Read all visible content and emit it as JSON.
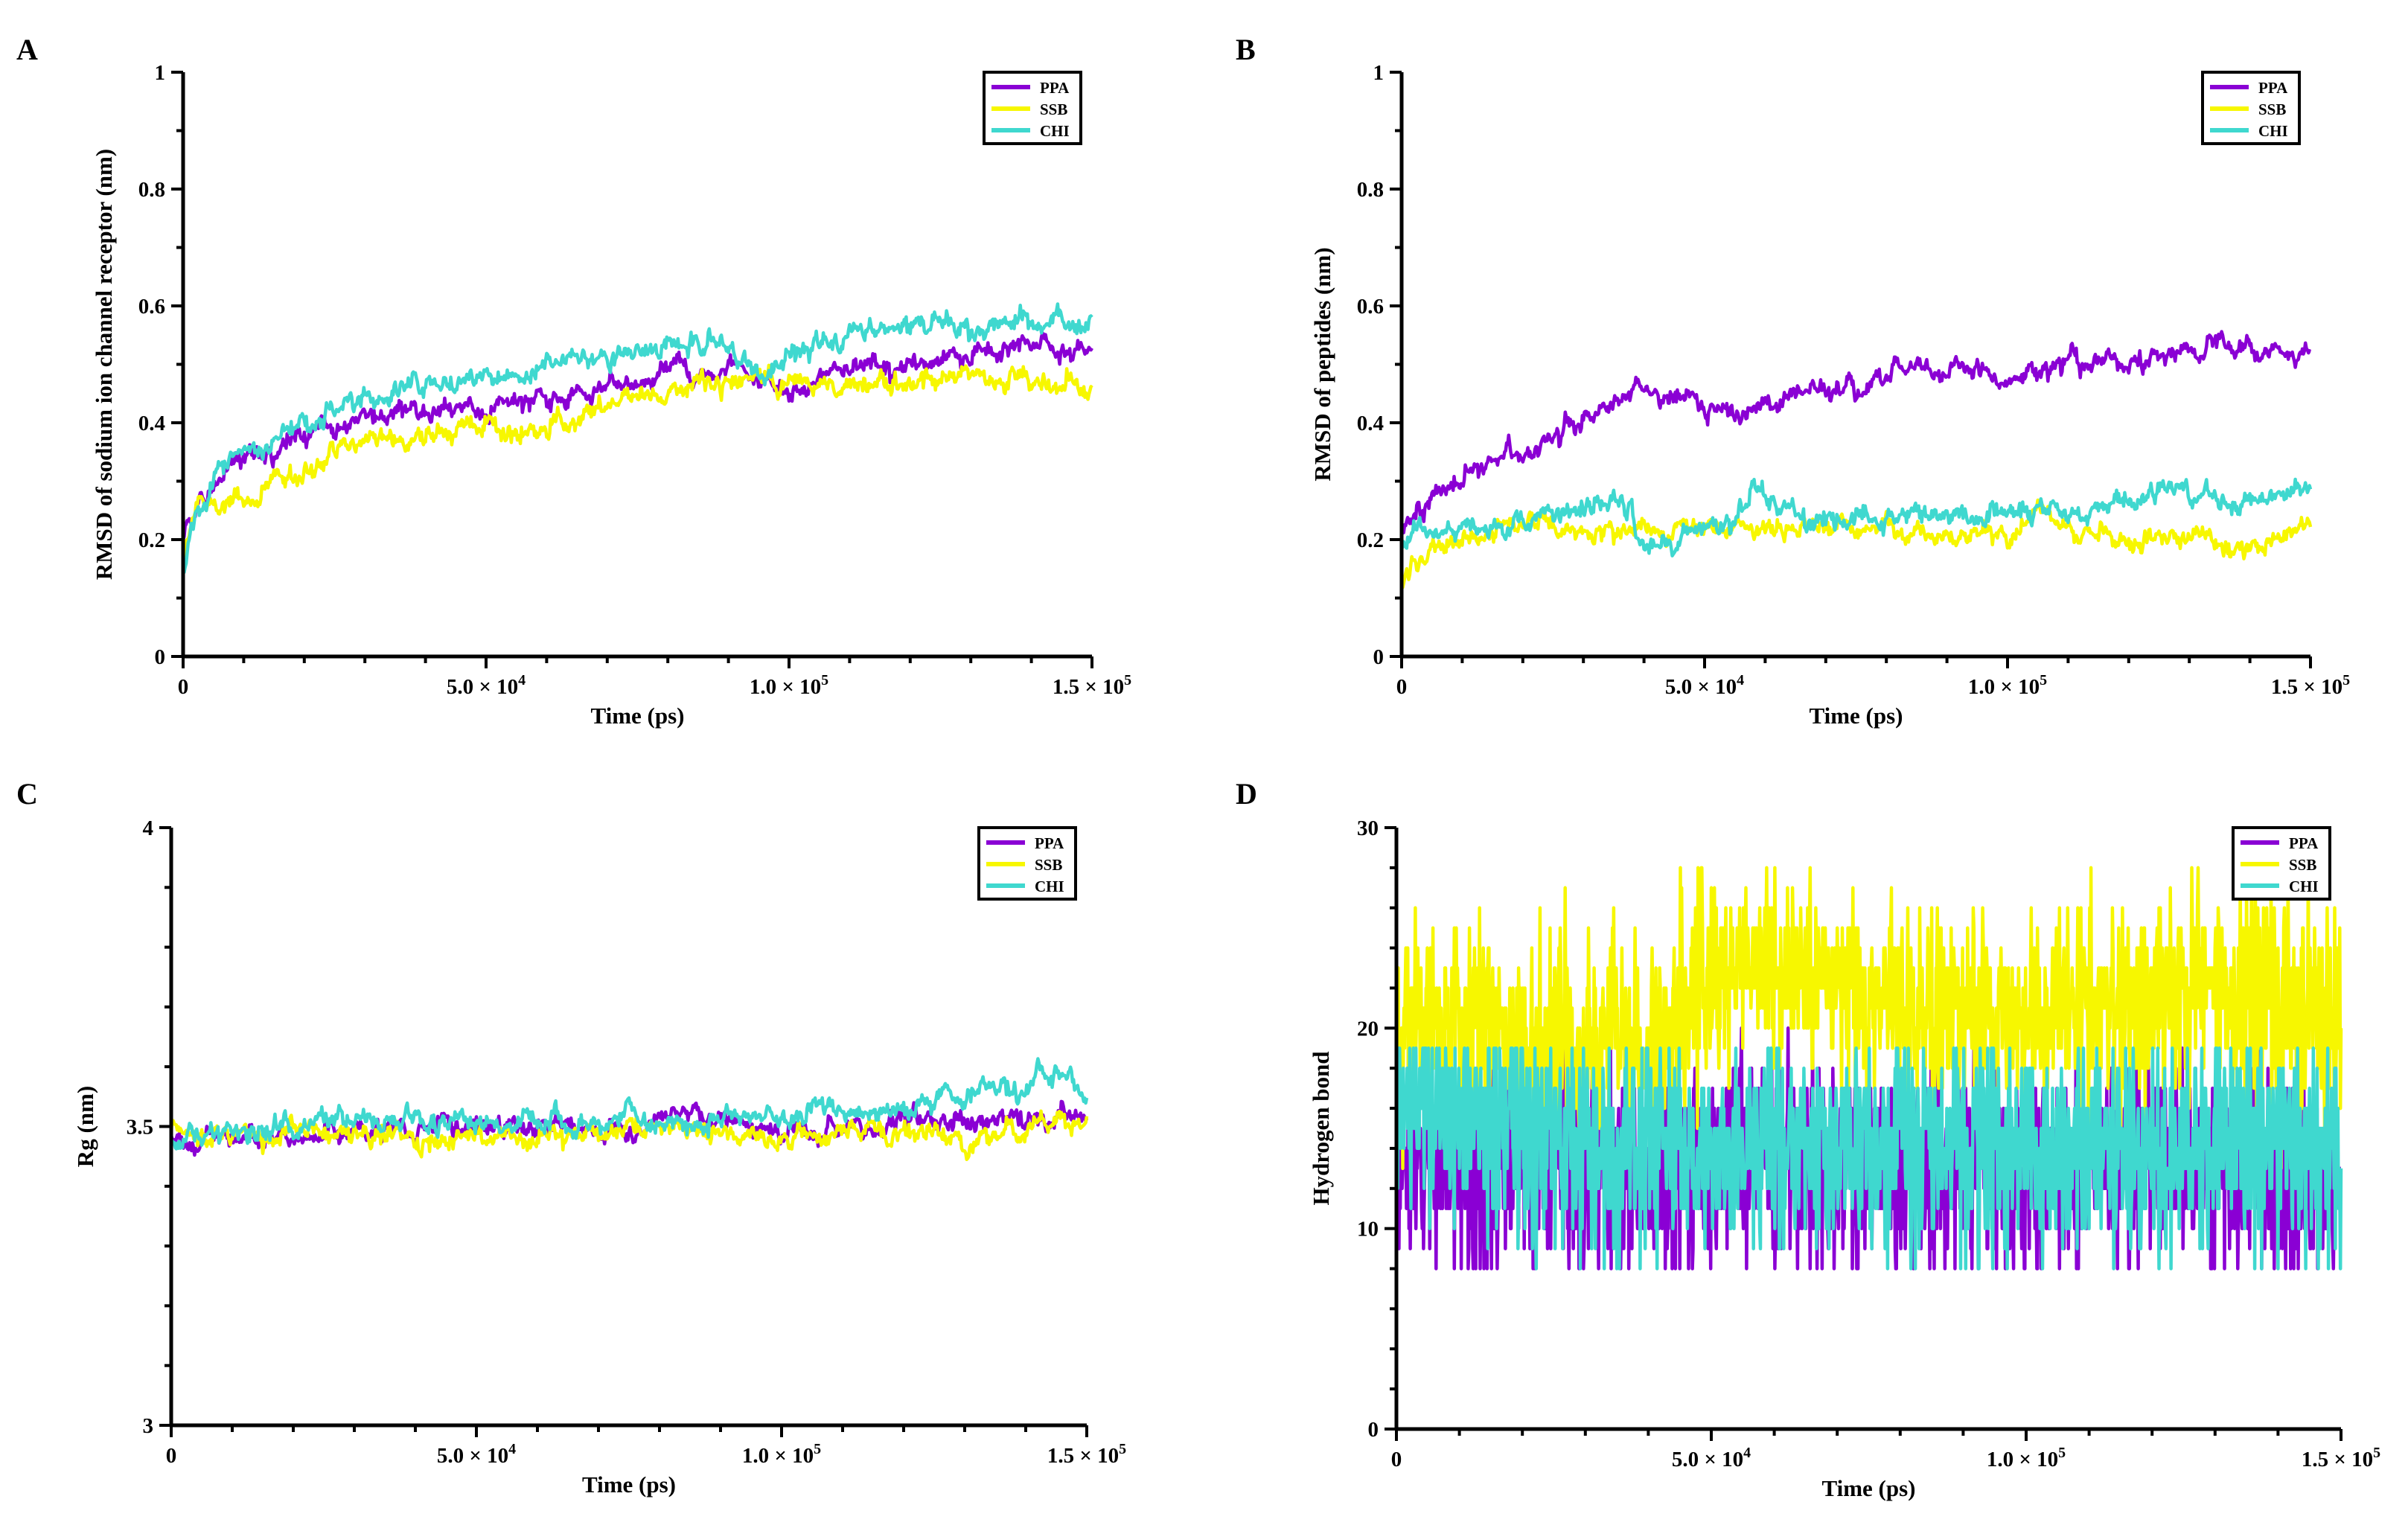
{
  "colors": {
    "PPA": "#8a00d4",
    "SSB": "#f7f700",
    "CHI": "#3fd8cf"
  },
  "chart_data": [
    {
      "panel": "A",
      "type": "line",
      "xlabel": "Time (ps)",
      "ylabel": "RMSD of sodium ion channel receptor (nm)",
      "xlim": [
        0,
        150000
      ],
      "ylim": [
        0,
        1
      ],
      "x_ticks": [
        0,
        50000,
        100000,
        150000
      ],
      "x_tick_labels": [
        "0",
        "5.0 × 10",
        "1.0 × 10",
        "1.5 × 10"
      ],
      "x_tick_exponents": [
        "",
        "4",
        "5",
        "5"
      ],
      "y_ticks": [
        0,
        0.2,
        0.4,
        0.6,
        0.8,
        1
      ],
      "y_tick_labels": [
        "0",
        "0.2",
        "0.4",
        "0.6",
        "0.8",
        "1"
      ],
      "legend": [
        "PPA",
        "SSB",
        "CHI"
      ],
      "legend_position": "top-right",
      "series": [
        {
          "name": "PPA",
          "x": [
            0,
            2000,
            5000,
            10000,
            20000,
            30000,
            40000,
            50000,
            60000,
            70000,
            80000,
            90000,
            95000,
            100000,
            110000,
            120000,
            130000,
            140000,
            150000
          ],
          "y": [
            0.2,
            0.24,
            0.3,
            0.33,
            0.38,
            0.41,
            0.43,
            0.42,
            0.44,
            0.46,
            0.48,
            0.5,
            0.47,
            0.46,
            0.49,
            0.5,
            0.52,
            0.53,
            0.52
          ]
        },
        {
          "name": "SSB",
          "x": [
            0,
            2000,
            5000,
            10000,
            20000,
            30000,
            40000,
            50000,
            60000,
            70000,
            80000,
            90000,
            100000,
            110000,
            120000,
            130000,
            140000,
            150000
          ],
          "y": [
            0.18,
            0.24,
            0.27,
            0.27,
            0.32,
            0.36,
            0.38,
            0.39,
            0.38,
            0.43,
            0.45,
            0.47,
            0.47,
            0.47,
            0.47,
            0.49,
            0.48,
            0.46
          ]
        },
        {
          "name": "CHI",
          "x": [
            0,
            2000,
            5000,
            10000,
            20000,
            30000,
            40000,
            50000,
            60000,
            70000,
            80000,
            90000,
            95000,
            100000,
            110000,
            120000,
            130000,
            140000,
            150000
          ],
          "y": [
            0.14,
            0.24,
            0.3,
            0.35,
            0.4,
            0.45,
            0.46,
            0.48,
            0.5,
            0.52,
            0.53,
            0.53,
            0.47,
            0.52,
            0.55,
            0.57,
            0.56,
            0.58,
            0.56
          ]
        }
      ]
    },
    {
      "panel": "B",
      "type": "line",
      "xlabel": "Time (ps)",
      "ylabel": "RMSD of peptides (nm)",
      "xlim": [
        0,
        150000
      ],
      "ylim": [
        0,
        1
      ],
      "x_ticks": [
        0,
        50000,
        100000,
        150000
      ],
      "x_tick_labels": [
        "0",
        "5.0 × 10",
        "1.0 × 10",
        "1.5 × 10"
      ],
      "x_tick_exponents": [
        "",
        "4",
        "5",
        "5"
      ],
      "y_ticks": [
        0,
        0.2,
        0.4,
        0.6,
        0.8,
        1
      ],
      "y_tick_labels": [
        "0",
        "0.2",
        "0.4",
        "0.6",
        "0.8",
        "1"
      ],
      "legend": [
        "PPA",
        "SSB",
        "CHI"
      ],
      "legend_position": "top-right",
      "series": [
        {
          "name": "PPA",
          "x": [
            0,
            2000,
            5000,
            10000,
            20000,
            30000,
            38000,
            45000,
            55000,
            65000,
            75000,
            85000,
            95000,
            100000,
            110000,
            120000,
            130000,
            135000,
            140000,
            150000
          ],
          "y": [
            0.2,
            0.25,
            0.28,
            0.31,
            0.35,
            0.41,
            0.46,
            0.44,
            0.42,
            0.45,
            0.46,
            0.49,
            0.5,
            0.46,
            0.5,
            0.5,
            0.52,
            0.55,
            0.52,
            0.53
          ]
        },
        {
          "name": "SSB",
          "x": [
            0,
            2000,
            5000,
            10000,
            20000,
            30000,
            40000,
            50000,
            60000,
            70000,
            80000,
            90000,
            100000,
            105000,
            110000,
            120000,
            130000,
            140000,
            150000
          ],
          "y": [
            0.13,
            0.16,
            0.19,
            0.2,
            0.22,
            0.22,
            0.23,
            0.22,
            0.22,
            0.22,
            0.21,
            0.21,
            0.21,
            0.26,
            0.22,
            0.2,
            0.2,
            0.19,
            0.22
          ]
        },
        {
          "name": "CHI",
          "x": [
            0,
            2000,
            5000,
            10000,
            20000,
            30000,
            38000,
            39000,
            45000,
            50000,
            55000,
            58000,
            62000,
            70000,
            80000,
            90000,
            100000,
            110000,
            120000,
            125000,
            130000,
            140000,
            150000
          ],
          "y": [
            0.18,
            0.22,
            0.22,
            0.22,
            0.24,
            0.25,
            0.26,
            0.19,
            0.2,
            0.22,
            0.24,
            0.3,
            0.26,
            0.23,
            0.24,
            0.24,
            0.24,
            0.25,
            0.26,
            0.29,
            0.27,
            0.27,
            0.28
          ]
        }
      ]
    },
    {
      "panel": "C",
      "type": "line",
      "xlabel": "Time (ps)",
      "ylabel": "Rg (nm)",
      "xlim": [
        0,
        150000
      ],
      "ylim": [
        3,
        4
      ],
      "x_ticks": [
        0,
        50000,
        100000,
        150000
      ],
      "x_tick_labels": [
        "0",
        "5.0 × 10",
        "1.0 × 10",
        "1.5 × 10"
      ],
      "x_tick_exponents": [
        "",
        "4",
        "5",
        "5"
      ],
      "y_ticks": [
        3,
        3.5,
        4
      ],
      "y_tick_labels": [
        "3",
        "3.5",
        "4"
      ],
      "legend": [
        "PPA",
        "SSB",
        "CHI"
      ],
      "legend_position": "top-right",
      "series": [
        {
          "name": "PPA",
          "x": [
            0,
            10000,
            20000,
            30000,
            40000,
            50000,
            60000,
            70000,
            80000,
            85000,
            90000,
            100000,
            110000,
            115000,
            120000,
            130000,
            140000,
            150000
          ],
          "y": [
            3.48,
            3.48,
            3.48,
            3.49,
            3.5,
            3.5,
            3.5,
            3.5,
            3.51,
            3.52,
            3.51,
            3.5,
            3.49,
            3.48,
            3.5,
            3.51,
            3.52,
            3.51
          ]
        },
        {
          "name": "SSB",
          "x": [
            0,
            10000,
            20000,
            30000,
            40000,
            50000,
            60000,
            70000,
            80000,
            90000,
            100000,
            110000,
            120000,
            130000,
            140000,
            150000
          ],
          "y": [
            3.49,
            3.48,
            3.49,
            3.49,
            3.48,
            3.48,
            3.49,
            3.49,
            3.5,
            3.49,
            3.48,
            3.49,
            3.49,
            3.48,
            3.5,
            3.52
          ]
        },
        {
          "name": "CHI",
          "x": [
            0,
            10000,
            20000,
            30000,
            40000,
            50000,
            60000,
            70000,
            80000,
            90000,
            100000,
            105000,
            110000,
            120000,
            125000,
            130000,
            140000,
            145000,
            150000
          ],
          "y": [
            3.48,
            3.49,
            3.5,
            3.51,
            3.51,
            3.51,
            3.51,
            3.51,
            3.51,
            3.51,
            3.51,
            3.53,
            3.53,
            3.52,
            3.55,
            3.56,
            3.57,
            3.58,
            3.56
          ]
        }
      ]
    },
    {
      "panel": "D",
      "type": "line",
      "xlabel": "Time (ps)",
      "ylabel": "Hydrogen bond",
      "xlim": [
        0,
        150000
      ],
      "ylim": [
        0,
        30
      ],
      "x_ticks": [
        0,
        50000,
        100000,
        150000
      ],
      "x_tick_labels": [
        "0",
        "5.0 × 10",
        "1.0 × 10",
        "1.5 × 10"
      ],
      "x_tick_exponents": [
        "",
        "4",
        "5",
        "5"
      ],
      "y_ticks": [
        0,
        10,
        20,
        30
      ],
      "y_tick_labels": [
        "0",
        "10",
        "20",
        "30"
      ],
      "legend": [
        "PPA",
        "SSB",
        "CHI"
      ],
      "legend_position": "top-right",
      "series": [
        {
          "name": "PPA",
          "noisy": true,
          "x": [
            0,
            10000,
            20000,
            30000,
            40000,
            50000,
            60000,
            70000,
            80000,
            90000,
            100000,
            110000,
            120000,
            130000,
            140000,
            150000
          ],
          "y": [
            14,
            13,
            13,
            13,
            13,
            13,
            14,
            13,
            13,
            13,
            13,
            13,
            14,
            13,
            12,
            12
          ],
          "y_range": [
            8,
            20
          ]
        },
        {
          "name": "SSB",
          "noisy": true,
          "x": [
            0,
            10000,
            20000,
            30000,
            40000,
            50000,
            60000,
            70000,
            80000,
            90000,
            100000,
            110000,
            120000,
            130000,
            140000,
            150000
          ],
          "y": [
            20,
            20,
            19,
            19,
            19,
            22,
            23,
            22,
            21,
            21,
            21,
            21,
            21,
            22,
            21,
            20
          ],
          "y_range": [
            13,
            28
          ]
        },
        {
          "name": "CHI",
          "noisy": true,
          "x": [
            0,
            10000,
            20000,
            30000,
            40000,
            50000,
            60000,
            70000,
            80000,
            90000,
            100000,
            110000,
            120000,
            130000,
            140000,
            150000
          ],
          "y": [
            16,
            15,
            15,
            14,
            14,
            14,
            14,
            14,
            14,
            14,
            14,
            14,
            14,
            14,
            14,
            14
          ],
          "y_range": [
            8,
            19
          ]
        }
      ]
    }
  ]
}
